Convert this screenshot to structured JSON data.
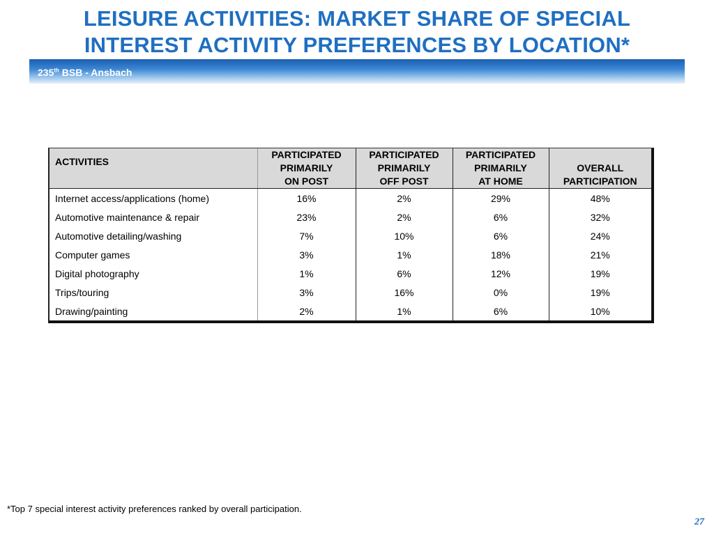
{
  "title": {
    "line1": "LEISURE ACTIVITIES: MARKET SHARE OF SPECIAL",
    "line2": "INTEREST ACTIVITY PREFERENCES BY LOCATION*"
  },
  "banner": {
    "prefix": "235",
    "superscript": "th",
    "suffix": " BSB - Ansbach"
  },
  "table": {
    "headers": {
      "activities": "ACTIVITIES",
      "on_post": [
        "PARTICIPATED",
        "PRIMARILY",
        "ON POST"
      ],
      "off_post": [
        "PARTICIPATED",
        "PRIMARILY",
        "OFF POST"
      ],
      "at_home": [
        "PARTICIPATED",
        "PRIMARILY",
        "AT HOME"
      ],
      "overall": [
        "OVERALL",
        "PARTICIPATION"
      ]
    },
    "rows": [
      [
        "Internet access/applications (home)",
        "16%",
        "2%",
        "29%",
        "48%"
      ],
      [
        "Automotive maintenance & repair",
        "23%",
        "2%",
        "6%",
        "32%"
      ],
      [
        "Automotive detailing/washing",
        "7%",
        "10%",
        "6%",
        "24%"
      ],
      [
        "Computer games",
        "3%",
        "1%",
        "18%",
        "21%"
      ],
      [
        "Digital photography",
        "1%",
        "6%",
        "12%",
        "19%"
      ],
      [
        "Trips/touring",
        "3%",
        "16%",
        "0%",
        "19%"
      ],
      [
        "Drawing/painting",
        "2%",
        "1%",
        "6%",
        "10%"
      ]
    ]
  },
  "footnote": "*Top 7 special interest activity preferences ranked by overall participation.",
  "page_number": "27",
  "colors": {
    "title": "#1F6FC1",
    "banner": "#2F7BCB",
    "header_fill": "#D9D9D9"
  }
}
